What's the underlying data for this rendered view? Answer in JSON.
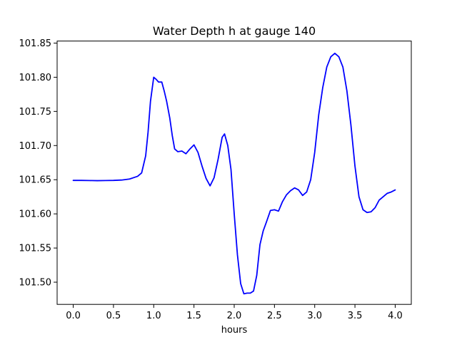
{
  "chart_data": {
    "type": "line",
    "title": "Water Depth h at gauge 140",
    "xlabel": "hours",
    "ylabel": "",
    "xlim": [
      -0.2,
      4.2
    ],
    "ylim": [
      101.4675,
      101.853
    ],
    "xticks": [
      0.0,
      0.5,
      1.0,
      1.5,
      2.0,
      2.5,
      3.0,
      3.5,
      4.0
    ],
    "xtick_labels": [
      "0.0",
      "0.5",
      "1.0",
      "1.5",
      "2.0",
      "2.5",
      "3.0",
      "3.5",
      "4.0"
    ],
    "yticks": [
      101.5,
      101.55,
      101.6,
      101.65,
      101.7,
      101.75,
      101.8,
      101.85
    ],
    "ytick_labels": [
      "101.50",
      "101.55",
      "101.60",
      "101.65",
      "101.70",
      "101.75",
      "101.80",
      "101.85"
    ],
    "grid": false,
    "series": [
      {
        "color": "#0000ff",
        "x": [
          0.0,
          0.1,
          0.2,
          0.3,
          0.4,
          0.5,
          0.6,
          0.7,
          0.8,
          0.85,
          0.9,
          0.93,
          0.96,
          1.0,
          1.03,
          1.06,
          1.1,
          1.13,
          1.16,
          1.2,
          1.23,
          1.26,
          1.3,
          1.35,
          1.4,
          1.45,
          1.5,
          1.55,
          1.6,
          1.65,
          1.7,
          1.75,
          1.8,
          1.85,
          1.88,
          1.92,
          1.96,
          2.0,
          2.04,
          2.08,
          2.12,
          2.16,
          2.2,
          2.24,
          2.28,
          2.32,
          2.36,
          2.4,
          2.45,
          2.5,
          2.55,
          2.6,
          2.65,
          2.7,
          2.75,
          2.8,
          2.85,
          2.9,
          2.95,
          3.0,
          3.05,
          3.1,
          3.15,
          3.2,
          3.25,
          3.3,
          3.35,
          3.4,
          3.45,
          3.5,
          3.55,
          3.6,
          3.65,
          3.7,
          3.75,
          3.8,
          3.85,
          3.9,
          3.95,
          4.0
        ],
        "y": [
          101.649,
          101.649,
          101.6488,
          101.6486,
          101.6488,
          101.649,
          101.6495,
          101.651,
          101.655,
          101.66,
          101.685,
          101.72,
          101.765,
          101.8,
          101.797,
          101.793,
          101.793,
          101.78,
          101.765,
          101.74,
          101.715,
          101.695,
          101.691,
          101.692,
          101.688,
          101.695,
          101.701,
          101.69,
          101.67,
          101.652,
          101.641,
          101.653,
          101.68,
          101.712,
          101.717,
          101.7,
          101.665,
          101.6,
          101.54,
          101.498,
          101.483,
          101.484,
          101.484,
          101.487,
          101.51,
          101.555,
          101.575,
          101.588,
          101.605,
          101.606,
          101.604,
          101.618,
          101.628,
          101.634,
          101.638,
          101.635,
          101.627,
          101.632,
          101.65,
          101.69,
          101.745,
          101.785,
          101.815,
          101.83,
          101.835,
          101.83,
          101.815,
          101.78,
          101.73,
          101.67,
          101.625,
          101.606,
          101.602,
          101.603,
          101.609,
          101.62,
          101.625,
          101.63,
          101.632,
          101.635
        ]
      }
    ]
  }
}
